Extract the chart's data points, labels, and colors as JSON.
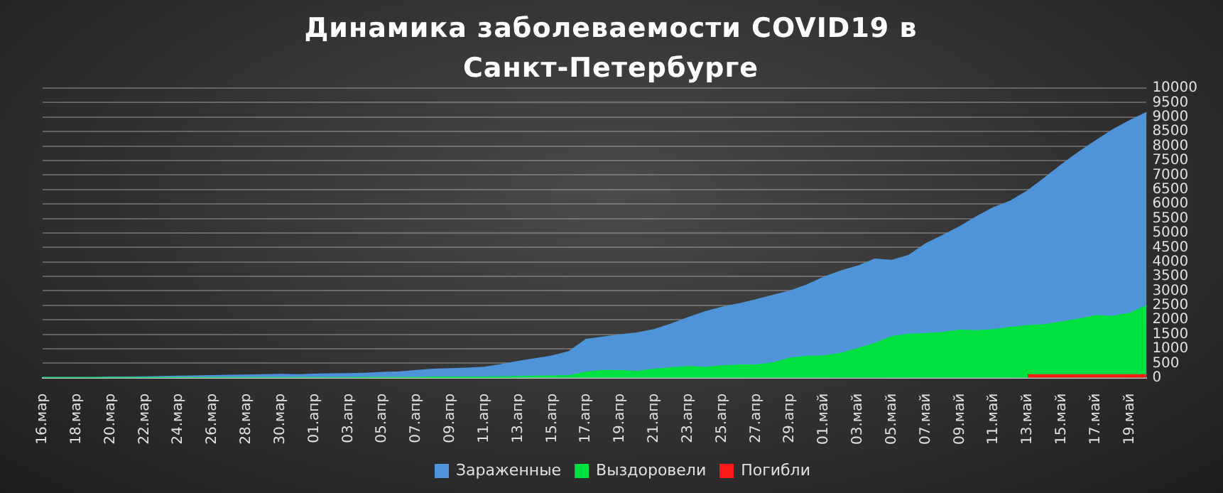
{
  "chart_data": {
    "type": "area",
    "title": "Динамика заболеваемости COVID19 в Санкт-Петербурге",
    "categories": [
      "16.мар",
      null,
      "18.мар",
      null,
      "20.мар",
      null,
      "22.мар",
      null,
      "24.мар",
      null,
      "26.мар",
      null,
      "28.мар",
      null,
      "30.мар",
      null,
      "01.апр",
      null,
      "03.апр",
      null,
      "05.апр",
      null,
      "07.апр",
      null,
      "09.апр",
      null,
      "11.апр",
      null,
      "13.апр",
      null,
      "15.апр",
      null,
      "17.апр",
      null,
      "19.апр",
      null,
      "21.апр",
      null,
      "23.апр",
      null,
      "25.апр",
      null,
      "27.апр",
      null,
      "29.апр",
      null,
      "01.май",
      null,
      "03.май",
      null,
      "05.май",
      null,
      "07.май",
      null,
      "09.май",
      null,
      "11.май",
      null,
      "13.май",
      null,
      "15.май",
      null,
      "17.май",
      null,
      "19.май",
      null
    ],
    "series": [
      {
        "name": "Зараженные",
        "color": "#4f94d8",
        "values": [
          10,
          10,
          10,
          10,
          20,
          20,
          30,
          40,
          50,
          60,
          70,
          80,
          90,
          100,
          110,
          100,
          120,
          130,
          140,
          150,
          180,
          200,
          250,
          290,
          310,
          330,
          360,
          450,
          560,
          650,
          750,
          900,
          1320,
          1400,
          1480,
          1540,
          1660,
          1850,
          2070,
          2270,
          2430,
          2550,
          2690,
          2840,
          2990,
          3200,
          3470,
          3680,
          3850,
          4090,
          4050,
          4220,
          4620,
          4910,
          5210,
          5560,
          5870,
          6100,
          6450,
          6890,
          7350,
          7780,
          8170,
          8550,
          8870,
          9150
        ]
      },
      {
        "name": "Выздоровели",
        "color": "#00e040",
        "values": [
          0,
          0,
          0,
          0,
          0,
          0,
          0,
          0,
          0,
          0,
          0,
          0,
          0,
          0,
          0,
          0,
          0,
          0,
          0,
          10,
          10,
          10,
          10,
          20,
          20,
          20,
          20,
          30,
          40,
          50,
          60,
          70,
          190,
          250,
          240,
          220,
          290,
          340,
          380,
          360,
          410,
          440,
          440,
          510,
          670,
          740,
          750,
          840,
          1010,
          1180,
          1420,
          1500,
          1520,
          1560,
          1640,
          1620,
          1660,
          1740,
          1800,
          1830,
          1920,
          2020,
          2140,
          2120,
          2220,
          2480
        ]
      },
      {
        "name": "Погибли",
        "color": "#ff1a1a",
        "values": [
          null,
          null,
          null,
          null,
          null,
          null,
          null,
          null,
          null,
          null,
          null,
          null,
          null,
          null,
          null,
          null,
          null,
          null,
          null,
          null,
          null,
          null,
          null,
          null,
          null,
          null,
          null,
          null,
          null,
          null,
          null,
          null,
          null,
          null,
          null,
          null,
          null,
          null,
          null,
          null,
          null,
          null,
          null,
          null,
          null,
          null,
          null,
          null,
          null,
          null,
          null,
          null,
          null,
          null,
          null,
          null,
          null,
          null,
          100,
          100,
          100,
          100,
          100,
          100,
          100,
          100
        ]
      }
    ],
    "ylim": [
      0,
      10000
    ],
    "yticks": [
      0,
      500,
      1000,
      1500,
      2000,
      2500,
      3000,
      3500,
      4000,
      4500,
      5000,
      5500,
      6000,
      6500,
      7000,
      7500,
      8000,
      8500,
      9000,
      9500,
      10000
    ],
    "grid": "y",
    "legend": "bottom"
  }
}
